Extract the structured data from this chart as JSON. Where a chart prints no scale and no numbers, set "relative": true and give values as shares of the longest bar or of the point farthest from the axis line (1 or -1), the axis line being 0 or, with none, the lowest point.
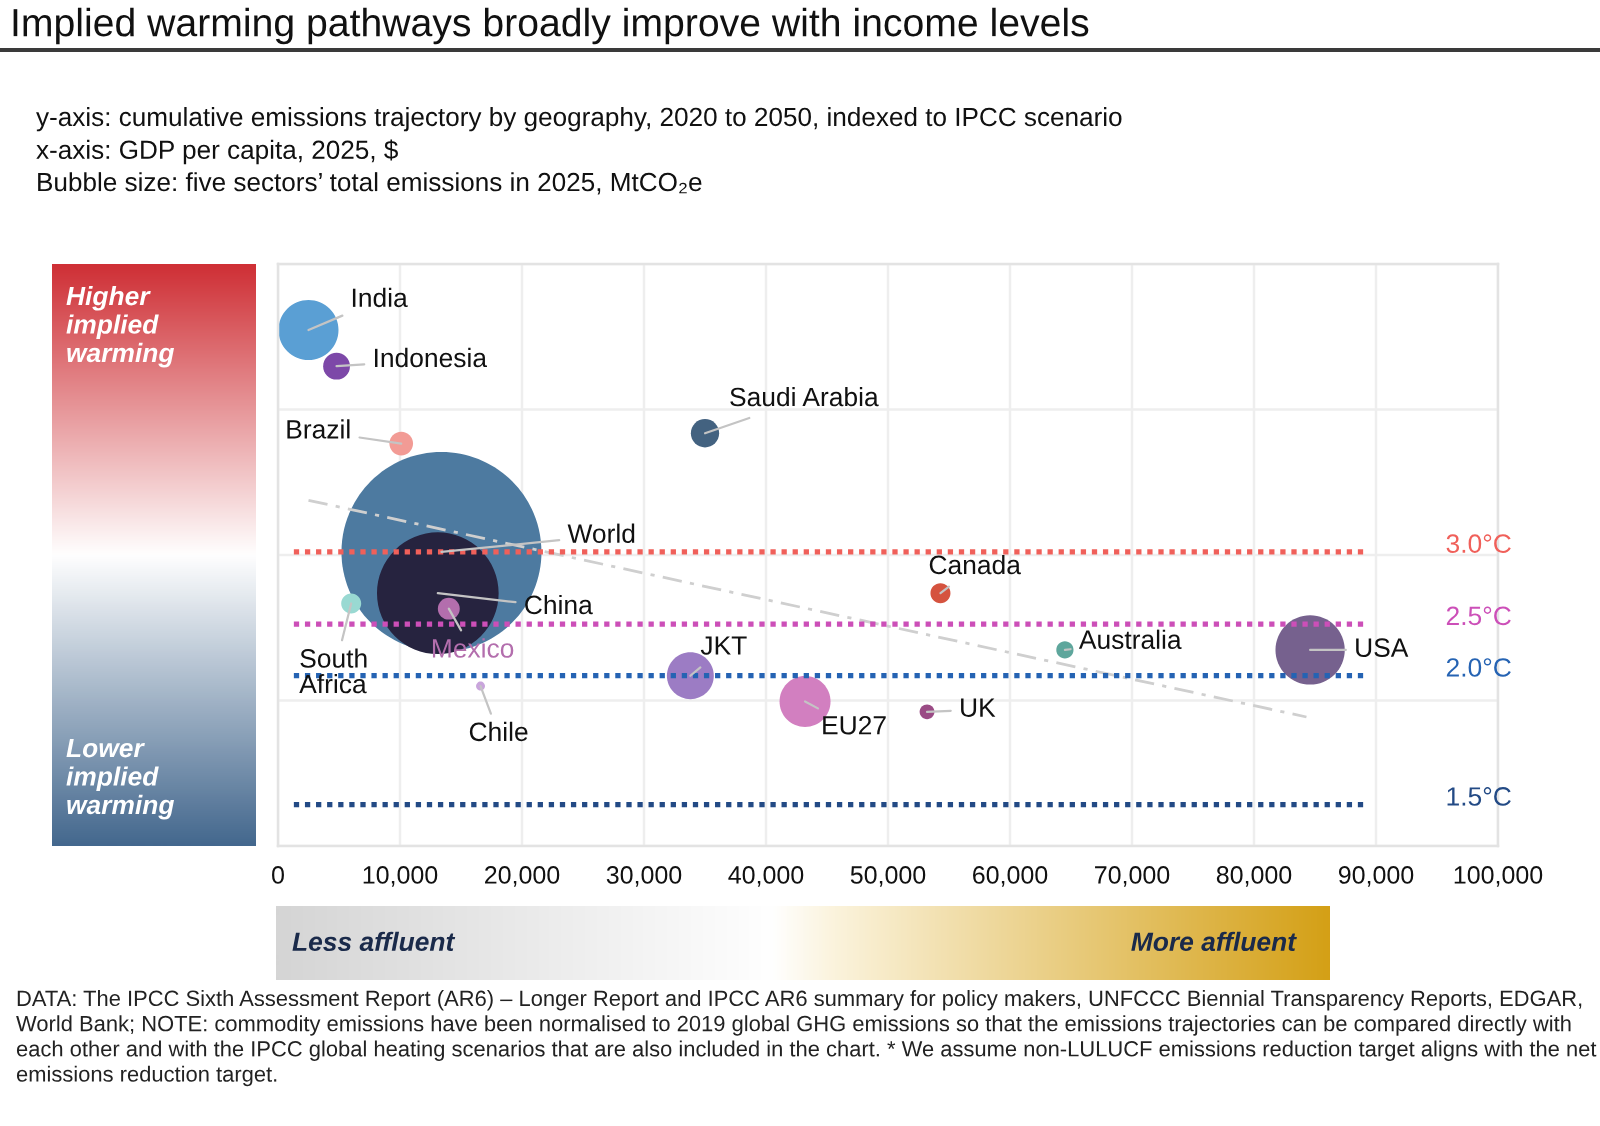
{
  "chart_data": {
    "type": "bubble",
    "title": "Implied warming pathways broadly improve with income levels",
    "subtitle": "y-axis: cumulative emissions trajectory by geography, 2020 to 2050, indexed to IPCC scenario\nx-axis: GDP per capita, 2025, $\nBubble size: five sectors’ total emissions in 2025, MtCO₂e",
    "relative": true,
    "marker": "circle",
    "grid": true,
    "xlim": [
      0,
      100000
    ],
    "xticks": [
      0,
      {
        "value": 10000,
        "label": "10,000"
      },
      {
        "value": 20000,
        "label": "20,000"
      },
      {
        "value": 30000,
        "label": "30,000"
      },
      {
        "value": 40000,
        "label": "40,000"
      },
      {
        "value": 50000,
        "label": "50,000"
      },
      {
        "value": 60000,
        "label": "60,000"
      },
      {
        "value": 70000,
        "label": "70,000"
      },
      {
        "value": 80000,
        "label": "80,000"
      },
      {
        "value": 90000,
        "label": "90,000"
      },
      {
        "value": 100000,
        "label": "100,000"
      }
    ],
    "series": [
      {
        "name": "World",
        "color": "#4d7aa0",
        "x": [
          13400
        ],
        "values": [
          0.57
        ],
        "sizes": [
          1
        ]
      },
      {
        "name": "China",
        "color": "#26233f",
        "x": [
          13100
        ],
        "values": [
          0.49
        ],
        "sizes": [
          0.37
        ]
      },
      {
        "name": "India",
        "color": "#5a9fd4",
        "x": [
          2500
        ],
        "values": [
          1
        ],
        "sizes": [
          0.09
        ]
      },
      {
        "name": "Indonesia",
        "color": "#7d48a8",
        "x": [
          4800
        ],
        "values": [
          0.93
        ],
        "sizes": [
          0.018
        ]
      },
      {
        "name": "Brazil",
        "color": "#f29b95",
        "x": [
          10100
        ],
        "values": [
          0.78
        ],
        "sizes": [
          0.014
        ]
      },
      {
        "name": "Saudi Arabia",
        "color": "#436280",
        "x": [
          35000
        ],
        "values": [
          0.8
        ],
        "sizes": [
          0.02
        ]
      },
      {
        "name": "Mexico",
        "color": "#b36ead",
        "x": [
          14000
        ],
        "values": [
          0.46
        ],
        "sizes": [
          0.012
        ]
      },
      {
        "name": "South Africa",
        "color": "#99d9d2",
        "x": [
          6000
        ],
        "values": [
          0.47
        ],
        "sizes": [
          0.01
        ]
      },
      {
        "name": "Chile",
        "color": "#c9a5dc",
        "x": [
          16600
        ],
        "values": [
          0.31
        ],
        "sizes": [
          0.002
        ]
      },
      {
        "name": "Canada",
        "color": "#d5533f",
        "x": [
          54300
        ],
        "values": [
          0.49
        ],
        "sizes": [
          0.01
        ]
      },
      {
        "name": "JKT",
        "color": "#9c7cc4",
        "x": [
          33800
        ],
        "values": [
          0.33
        ],
        "sizes": [
          0.055
        ]
      },
      {
        "name": "EU27",
        "color": "#d27fc0",
        "x": [
          43200
        ],
        "values": [
          0.28
        ],
        "sizes": [
          0.065
        ]
      },
      {
        "name": "UK",
        "color": "#9a4b85",
        "x": [
          53200
        ],
        "values": [
          0.26
        ],
        "sizes": [
          0.0055
        ]
      },
      {
        "name": "Australia",
        "color": "#5ea69c",
        "x": [
          64500
        ],
        "values": [
          0.38
        ],
        "sizes": [
          0.0074
        ]
      },
      {
        "name": "USA",
        "color": "#76618e",
        "x": [
          84600
        ],
        "values": [
          0.38
        ],
        "sizes": [
          0.12
        ]
      },
      {
        "type": "line",
        "color": "#cfcfcf",
        "line_style": "dashed",
        "marker": "none",
        "x": [
          2500,
          84300
        ],
        "values": [
          0.67,
          0.25
        ]
      }
    ],
    "ref_lines": [
      {
        "axis": "y",
        "value": 0.57,
        "label": "3.0°C",
        "color": "#f0605a",
        "line_style": "dotted"
      },
      {
        "axis": "y",
        "value": 0.43,
        "label": "2.5°C",
        "color": "#cc4fb8",
        "line_style": "dotted"
      },
      {
        "axis": "y",
        "value": 0.33,
        "label": "2.0°C",
        "color": "#2563b3",
        "line_style": "dotted"
      },
      {
        "axis": "y",
        "value": 0.08,
        "label": "1.5°C",
        "color": "#234a85",
        "line_style": "dotted"
      }
    ],
    "annotations": [
      "Higher implied warming",
      "Lower implied warming",
      "Less affluent",
      "More affluent",
      "DATA: The IPCC Sixth Assessment Report (AR6) – Longer Report and IPCC AR6 summary for policy makers, UNFCCC Biennial Transparency Reports, EDGAR, World Bank; NOTE: commodity emissions have been normalised to 2019 global GHG emissions so that the emissions trajectories can be compared directly with each other and with the IPCC global heating scenarios that are also included in the chart. * We assume non-LULUCF emissions reduction target aligns with the net emissions reduction target."
    ]
  }
}
